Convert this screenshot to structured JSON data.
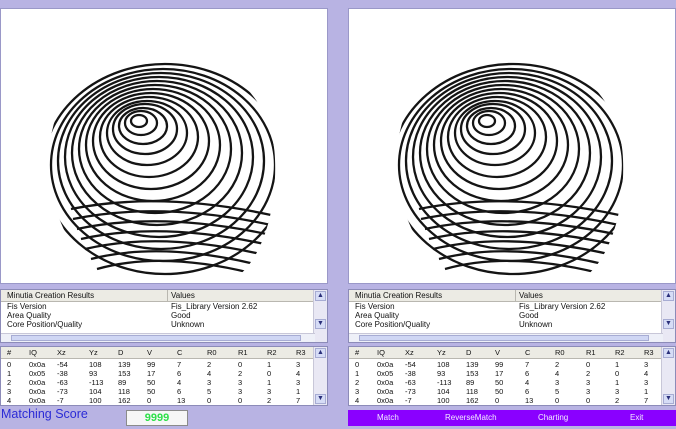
{
  "results_table": {
    "headers": [
      "Minutia Creation Results",
      "Values"
    ],
    "rows": [
      [
        "Fis Version",
        "Fis_Library Version 2.62"
      ],
      [
        "Area Quality",
        "Good"
      ],
      [
        "Core Position/Quality",
        "Unknown"
      ]
    ]
  },
  "minutia_table": {
    "headers": [
      "#",
      "IQ",
      "Xz",
      "Yz",
      "D",
      "V",
      "C",
      "R0",
      "R1",
      "R2",
      "R3"
    ],
    "rows": [
      [
        "0",
        "0x0a",
        "-54",
        "108",
        "139",
        "99",
        "7",
        "2",
        "0",
        "1",
        "3"
      ],
      [
        "1",
        "0x05",
        "-38",
        "93",
        "153",
        "17",
        "6",
        "4",
        "2",
        "0",
        "4"
      ],
      [
        "2",
        "0x0a",
        "-63",
        "-113",
        "89",
        "50",
        "4",
        "3",
        "3",
        "1",
        "3"
      ],
      [
        "3",
        "0x0a",
        "-73",
        "104",
        "118",
        "50",
        "6",
        "5",
        "3",
        "3",
        "1"
      ],
      [
        "4",
        "0x0a",
        "-7",
        "100",
        "162",
        "0",
        "13",
        "0",
        "0",
        "2",
        "7"
      ]
    ]
  },
  "matching": {
    "label": "Matching Score",
    "value": "9999"
  },
  "toolbar": {
    "buttons": [
      "Match",
      "ReverseMatch",
      "Charting",
      "Exit"
    ]
  },
  "icons": {
    "scroll_up": "scroll-up-arrow-icon",
    "scroll_down": "scroll-down-arrow-icon"
  },
  "colors": {
    "background": "#b8b3e3",
    "toolbar": "#8a00ff",
    "score_label": "#2b2bd6",
    "score_value": "#2ee04a"
  }
}
